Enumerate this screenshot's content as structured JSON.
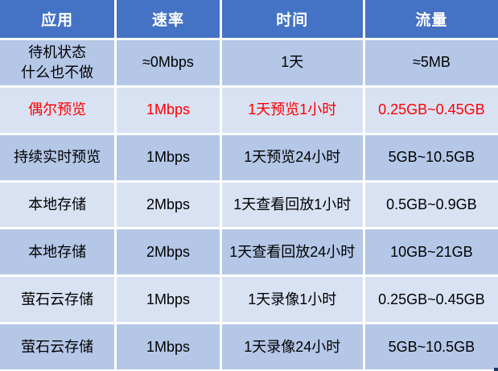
{
  "colors": {
    "header_bg": "#4472C4",
    "header_text": "#FFFFFF",
    "row_band_dark": "#B4C7E7",
    "row_band_light": "#D9E2F3",
    "grid_line": "#FFFFFF",
    "body_text": "#000000",
    "highlight_text": "#FF0000",
    "corner_mark": "#1F3864"
  },
  "chart_data": {
    "type": "table",
    "columns": [
      "应用",
      "速率",
      "时间",
      "流量"
    ],
    "highlighted_row_index": 1,
    "rows": [
      {
        "app": "待机状态\n什么也不做",
        "rate": "≈0Mbps",
        "time": "1天",
        "traffic": "≈5MB"
      },
      {
        "app": "偶尔预览",
        "rate": "1Mbps",
        "time": "1天预览1小时",
        "traffic": "0.25GB~0.45GB"
      },
      {
        "app": "持续实时预览",
        "rate": "1Mbps",
        "time": "1天预览24小时",
        "traffic": "5GB~10.5GB"
      },
      {
        "app": "本地存储",
        "rate": "2Mbps",
        "time": "1天查看回放1小时",
        "traffic": "0.5GB~0.9GB"
      },
      {
        "app": "本地存储",
        "rate": "2Mbps",
        "time": "1天查看回放24小时",
        "traffic": "10GB~21GB"
      },
      {
        "app": "萤石云存储",
        "rate": "1Mbps",
        "time": "1天录像1小时",
        "traffic": "0.25GB~0.45GB"
      },
      {
        "app": "萤石云存储",
        "rate": "1Mbps",
        "time": "1天录像24小时",
        "traffic": "5GB~10.5GB"
      }
    ]
  }
}
